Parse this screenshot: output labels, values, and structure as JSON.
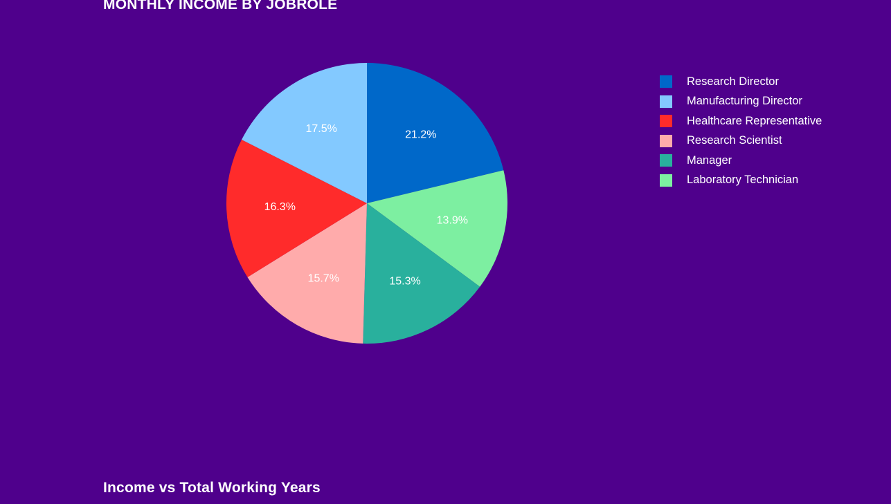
{
  "page": {
    "title_top": "MONTHLY INCOME BY JOBROLE",
    "title_bottom": "Income vs Total Working Years"
  },
  "chart_data": {
    "type": "pie",
    "title": "MONTHLY INCOME BY JOBROLE",
    "legend_position": "right",
    "slices": [
      {
        "label": "Research Director",
        "value": 21.2,
        "display": "21.2%",
        "color": "#0068c9"
      },
      {
        "label": "Laboratory Technician",
        "value": 13.9,
        "display": "13.9%",
        "color": "#7defa1"
      },
      {
        "label": "Manager",
        "value": 15.3,
        "display": "15.3%",
        "color": "#29b09d"
      },
      {
        "label": "Research Scientist",
        "value": 15.7,
        "display": "15.7%",
        "color": "#ffabab"
      },
      {
        "label": "Healthcare Representative",
        "value": 16.3,
        "display": "16.3%",
        "color": "#ff2b2b"
      },
      {
        "label": "Manufacturing Director",
        "value": 17.5,
        "display": "17.5%",
        "color": "#83c9ff"
      }
    ],
    "legend": [
      {
        "label": "Research Director",
        "color": "#0068c9"
      },
      {
        "label": "Manufacturing Director",
        "color": "#83c9ff"
      },
      {
        "label": "Healthcare Representative",
        "color": "#ff2b2b"
      },
      {
        "label": "Research Scientist",
        "color": "#ffabab"
      },
      {
        "label": "Manager",
        "color": "#29b09d"
      },
      {
        "label": "Laboratory Technician",
        "color": "#7defa1"
      }
    ]
  }
}
